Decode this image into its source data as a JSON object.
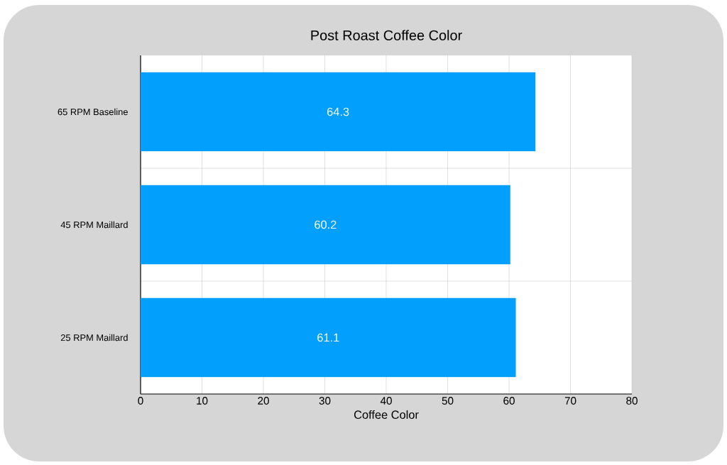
{
  "chart_data": {
    "type": "bar",
    "orientation": "horizontal",
    "title": "Post Roast Coffee Color",
    "xlabel": "Coffee Color",
    "categories": [
      "65 RPM Baseline",
      "45 RPM Maillard",
      "25 RPM Maillard"
    ],
    "values": [
      64.3,
      60.2,
      61.1
    ],
    "color": "#039ffd",
    "data_labels": true,
    "xlim": [
      0,
      80
    ],
    "xticks": [
      0,
      10,
      20,
      30,
      40,
      50,
      60,
      70,
      80
    ],
    "grid": true
  }
}
